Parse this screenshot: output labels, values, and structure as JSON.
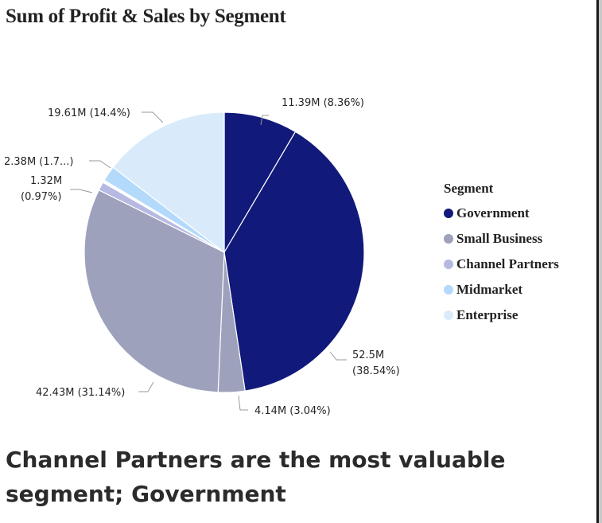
{
  "chart_data": {
    "type": "pie",
    "title": "Sum of Profit & Sales by Segment",
    "legend_title": "Segment",
    "legend_position": "right",
    "slices": [
      {
        "label": "Government",
        "value": 11.39,
        "display": "11.39M (8.36%)",
        "color": "#11197a"
      },
      {
        "label": "Government",
        "value": 52.5,
        "display": "52.5M (38.54%)",
        "color": "#11197a"
      },
      {
        "label": "Small Business",
        "value": 4.14,
        "display": "4.14M (3.04%)",
        "color": "#9ea1bc"
      },
      {
        "label": "Small Business",
        "value": 42.43,
        "display": "42.43M (31.14%)",
        "color": "#9ea1bc"
      },
      {
        "label": "Channel Partners",
        "value": 1.32,
        "display": "1.32M (0.97%)",
        "color": "#b6b9e2"
      },
      {
        "label": "Midmarket",
        "value": 0.39,
        "display": "",
        "color": "#ffffff"
      },
      {
        "label": "Midmarket",
        "value": 2.38,
        "display": "2.38M (1.7...)",
        "color": "#b3d9fb"
      },
      {
        "label": "Enterprise",
        "value": 19.61,
        "display": "19.61M (14.4%)",
        "color": "#d9ebfb"
      }
    ],
    "legend": [
      {
        "label": "Government",
        "color": "#11197a"
      },
      {
        "label": "Small Business",
        "color": "#9ea1bc"
      },
      {
        "label": "Channel Partners",
        "color": "#b6b9e2"
      },
      {
        "label": "Midmarket",
        "color": "#b3d9fb"
      },
      {
        "label": "Enterprise",
        "color": "#d9ebfb"
      }
    ]
  },
  "insight_text": "Channel Partners are the most valuable segment; Government"
}
